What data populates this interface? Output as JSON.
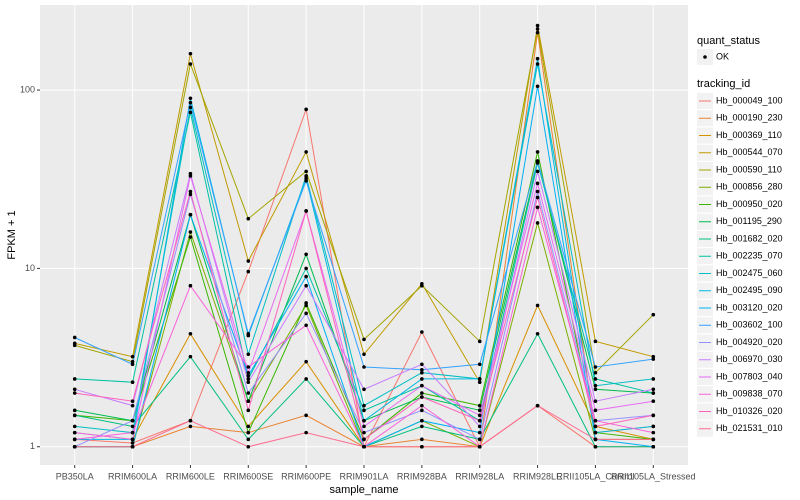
{
  "chart_data": {
    "type": "line",
    "xlabel": "sample_name",
    "ylabel": "FPKM + 1",
    "log_y": true,
    "grid": true,
    "ylim": [
      0.79,
      300
    ],
    "yticks": [
      1,
      10,
      100
    ],
    "legend_position": "right",
    "shape_legend_title": "quant_status",
    "shape_legend_labels": [
      "OK"
    ],
    "color_legend_title": "tracking_id",
    "point_color": "#000000",
    "categories": [
      "PB350LA",
      "RRIM600LA",
      "RRIM600LE",
      "RRIM600SE",
      "RRIM600PE",
      "RRIM901LA",
      "RRIM928BA",
      "RRIM928LA",
      "RRIM928LE",
      "RRII105LA_Control",
      "RRII105LA_Stressed"
    ],
    "series": [
      {
        "name": "Hb_000049_100",
        "color": "#F8766D",
        "values": [
          1.1,
          1.05,
          1.4,
          9.6,
          78,
          1.0,
          4.4,
          1.0,
          1.7,
          1.0,
          1.0
        ]
      },
      {
        "name": "Hb_000190_230",
        "color": "#EA8331",
        "values": [
          1.0,
          1.0,
          1.3,
          1.2,
          1.5,
          1.0,
          1.1,
          1.0,
          210,
          1.2,
          1.3
        ]
      },
      {
        "name": "Hb_000369_110",
        "color": "#D89000",
        "values": [
          1.2,
          1.1,
          4.3,
          1.3,
          3.0,
          1.0,
          1.0,
          1.0,
          6.2,
          1.3,
          1.1
        ]
      },
      {
        "name": "Hb_000544_070",
        "color": "#C09B00",
        "values": [
          3.8,
          3.2,
          160,
          11,
          45,
          3.3,
          8.2,
          2.3,
          230,
          3.9,
          3.2
        ]
      },
      {
        "name": "Hb_000590_110",
        "color": "#A3A500",
        "values": [
          3.7,
          3.0,
          140,
          19,
          35,
          4.0,
          8.0,
          3.9,
          220,
          2.6,
          5.5
        ]
      },
      {
        "name": "Hb_000856_280",
        "color": "#7CAE00",
        "values": [
          1.0,
          1.0,
          16,
          1.8,
          6.2,
          1.0,
          1.4,
          1.0,
          18,
          1.1,
          1.1
        ]
      },
      {
        "name": "Hb_000950_020",
        "color": "#39B600",
        "values": [
          1.5,
          1.4,
          15,
          1.2,
          6.4,
          1.1,
          2.0,
          1.7,
          45,
          1.2,
          1.1
        ]
      },
      {
        "name": "Hb_001195_290",
        "color": "#00BB4E",
        "values": [
          1.6,
          1.4,
          20,
          1.8,
          12,
          1.4,
          1.9,
          1.6,
          40,
          2.1,
          2.0
        ]
      },
      {
        "name": "Hb_001682_020",
        "color": "#00BF7D",
        "values": [
          1.5,
          1.3,
          3.2,
          1.1,
          2.4,
          1.0,
          1.3,
          1.1,
          4.3,
          1.0,
          1.0
        ]
      },
      {
        "name": "Hb_002235_070",
        "color": "#00C1A3",
        "values": [
          2.4,
          2.3,
          75,
          2.4,
          10,
          1.6,
          2.2,
          1.4,
          39,
          2.4,
          2.0
        ]
      },
      {
        "name": "Hb_002475_060",
        "color": "#00BFC4",
        "values": [
          1.3,
          1.2,
          80,
          3.3,
          33,
          1.7,
          2.6,
          2.4,
          140,
          2.2,
          2.4
        ]
      },
      {
        "name": "Hb_002495_090",
        "color": "#00BAE0",
        "values": [
          1.1,
          1.1,
          90,
          4.2,
          32,
          1.4,
          2.4,
          2.4,
          150,
          1.2,
          1.3
        ]
      },
      {
        "name": "Hb_003120_020",
        "color": "#00B0F6",
        "values": [
          1.0,
          1.0,
          20,
          2.5,
          9,
          1.0,
          1.4,
          1.2,
          105,
          1.1,
          1.0
        ]
      },
      {
        "name": "Hb_003602_100",
        "color": "#35A2FF",
        "values": [
          4.1,
          2.9,
          85,
          4.3,
          31,
          2.8,
          2.7,
          2.9,
          40,
          2.8,
          3.1
        ]
      },
      {
        "name": "Hb_004920_020",
        "color": "#9590FF",
        "values": [
          1.0,
          1.4,
          26,
          2.0,
          5.6,
          1.2,
          1.6,
          1.1,
          27,
          1.4,
          1.5
        ]
      },
      {
        "name": "Hb_006970_030",
        "color": "#C77CFF",
        "values": [
          2.1,
          1.7,
          34,
          2.3,
          8,
          2.1,
          2.9,
          1.3,
          35,
          1.8,
          2.1
        ]
      },
      {
        "name": "Hb_007803_040",
        "color": "#E76BF3",
        "values": [
          1.2,
          1.1,
          33,
          2.6,
          21,
          1.3,
          2.2,
          1.5,
          30,
          1.6,
          1.8
        ]
      },
      {
        "name": "Hb_009838_070",
        "color": "#FA62DB",
        "values": [
          1.1,
          1.2,
          8,
          2.8,
          4.8,
          1.0,
          1.7,
          1.0,
          22,
          1.4,
          1.2
        ]
      },
      {
        "name": "Hb_010326_020",
        "color": "#FF62BC",
        "values": [
          2.0,
          1.8,
          27,
          1.6,
          21,
          1.1,
          1.9,
          1.4,
          25,
          1.3,
          1.5
        ]
      },
      {
        "name": "Hb_021531_010",
        "color": "#FF6C91",
        "values": [
          1.0,
          1.0,
          1.4,
          1.0,
          1.2,
          1.0,
          1.0,
          1.0,
          1.7,
          1.1,
          1.1
        ]
      }
    ]
  }
}
